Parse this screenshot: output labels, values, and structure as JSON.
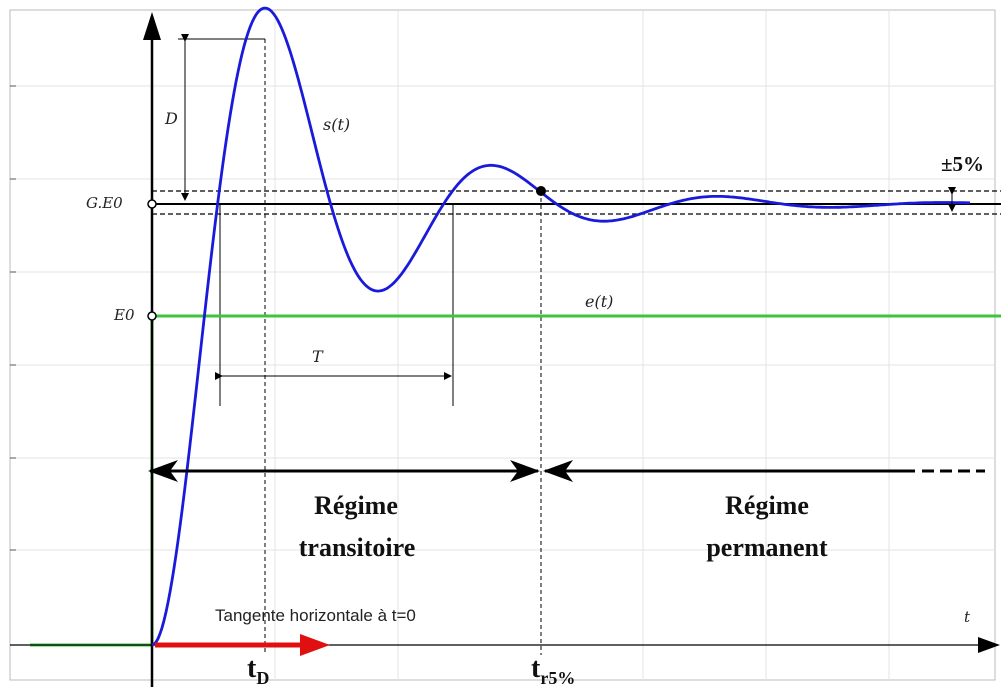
{
  "labels": {
    "D": "D",
    "s_t": "s(t)",
    "e_t": "e(t)",
    "T": "T",
    "G_E0": "G.E0",
    "E0": "E0",
    "pm5": "±5%",
    "regime_transitoire_1": "Régime",
    "regime_transitoire_2": "transitoire",
    "regime_permanent_1": "Régime",
    "regime_permanent_2": "permanent",
    "tangente": "Tangente horizontale à t=0",
    "t_axis": "t",
    "tD_main": "t",
    "tD_sub": "D",
    "tr5_main": "t",
    "tr5_sub": "r5%"
  },
  "colors": {
    "response": "#1a1adb",
    "input": "#3cc43c",
    "tangent": "#e01010",
    "axis": "#000000",
    "grid": "#dddddd"
  },
  "response": {
    "final_value": 1.0,
    "damping_ratio": 0.25,
    "natural_frequency": 1.0
  }
}
